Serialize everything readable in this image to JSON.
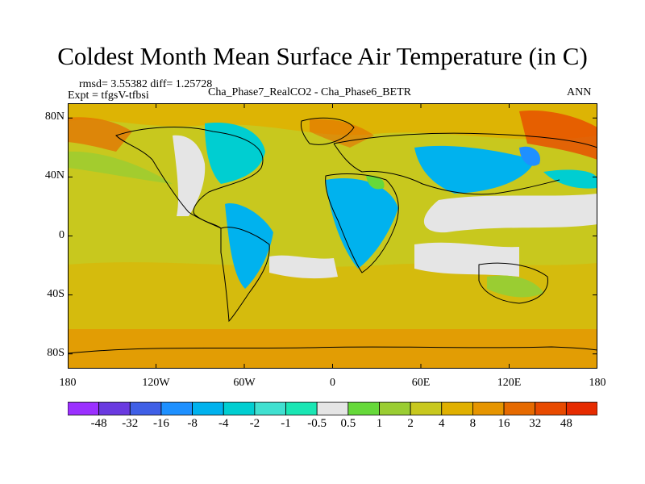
{
  "title": "Coldest Month Mean Surface Air Temperature (in C)",
  "stats": {
    "rmsd_line": "rmsd= 3.55382 diff= 1.25728",
    "expt_line": "Expt = tfgsV-tfbsi",
    "comparison": "Cha_Phase7_RealCO2 - Cha_Phase6_BETR",
    "season": "ANN"
  },
  "map": {
    "projection": "cylindrical-equidistant",
    "lon_range": [
      -180,
      180
    ],
    "lat_range": [
      -90,
      90
    ],
    "lat_ticks": [
      {
        "value": 80,
        "label": "80N"
      },
      {
        "value": 40,
        "label": "40N"
      },
      {
        "value": 0,
        "label": "0"
      },
      {
        "value": -40,
        "label": "40S"
      },
      {
        "value": -80,
        "label": "80S"
      }
    ],
    "lon_ticks": [
      {
        "value": -180,
        "label": "180"
      },
      {
        "value": -120,
        "label": "120W"
      },
      {
        "value": -60,
        "label": "60W"
      },
      {
        "value": 0,
        "label": "0"
      },
      {
        "value": 60,
        "label": "60E"
      },
      {
        "value": 120,
        "label": "120E"
      },
      {
        "value": 180,
        "label": "180"
      }
    ],
    "background_color": "#c8c81e"
  },
  "colorbar": {
    "colors": [
      "#9b30ff",
      "#6a3ae0",
      "#3f5fe6",
      "#1e90ff",
      "#00b2ee",
      "#00ced1",
      "#40e0d0",
      "#1ae6b4",
      "#e5e5e5",
      "#66d93a",
      "#9acd32",
      "#c8c81e",
      "#e0b000",
      "#e69500",
      "#e66a00",
      "#e84a00",
      "#e62b00"
    ],
    "labels": [
      "-48",
      "-32",
      "-16",
      "-8",
      "-4",
      "-2",
      "-1",
      "-0.5",
      "0.5",
      "1",
      "2",
      "4",
      "8",
      "16",
      "32",
      "48"
    ]
  }
}
